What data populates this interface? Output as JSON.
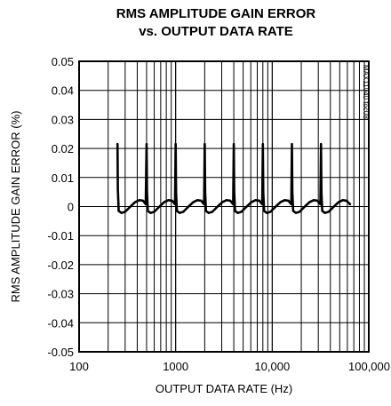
{
  "chart_data": {
    "type": "line",
    "title": [
      "RMS AMPLITUDE GAIN ERROR",
      "vs. OUTPUT DATA RATE"
    ],
    "xlabel": "OUTPUT DATA RATE (Hz)",
    "ylabel": "RMS AMPLITUDE GAIN ERROR (%)",
    "side_note": "MAX11040 toc08",
    "x_scale": "log",
    "xlim": [
      100,
      100000
    ],
    "ylim": [
      -0.05,
      0.05
    ],
    "grid": true,
    "x_ticks": [
      {
        "value": 100,
        "label": "100"
      },
      {
        "value": 1000,
        "label": "1000"
      },
      {
        "value": 10000,
        "label": "10,000"
      },
      {
        "value": 100000,
        "label": "100,000"
      }
    ],
    "y_ticks": [
      {
        "value": 0.05,
        "label": "0.05"
      },
      {
        "value": 0.04,
        "label": "0.04"
      },
      {
        "value": 0.03,
        "label": "0.03"
      },
      {
        "value": 0.02,
        "label": "0.02"
      },
      {
        "value": 0.01,
        "label": "0.01"
      },
      {
        "value": 0,
        "label": "0"
      },
      {
        "value": -0.01,
        "label": "-0.01"
      },
      {
        "value": -0.02,
        "label": "-0.02"
      },
      {
        "value": -0.03,
        "label": "-0.03"
      },
      {
        "value": -0.04,
        "label": "-0.04"
      },
      {
        "value": -0.05,
        "label": "-0.05"
      }
    ],
    "series": [
      {
        "color": "#000000",
        "points": [
          [
            250,
            0.0215
          ],
          [
            252,
            0.006
          ],
          [
            257,
            -0.0015
          ],
          [
            275,
            -0.0022
          ],
          [
            300,
            -0.0018
          ],
          [
            340,
            0.0
          ],
          [
            380,
            0.0015
          ],
          [
            420,
            0.0022
          ],
          [
            460,
            0.002
          ],
          [
            490,
            0.0008
          ],
          [
            500,
            0.0215
          ],
          [
            505,
            0.005
          ],
          [
            515,
            -0.0015
          ],
          [
            550,
            -0.0022
          ],
          [
            600,
            -0.0018
          ],
          [
            680,
            0.0
          ],
          [
            760,
            0.0015
          ],
          [
            840,
            0.0022
          ],
          [
            920,
            0.002
          ],
          [
            985,
            0.0008
          ],
          [
            1000,
            0.0215
          ],
          [
            1010,
            0.005
          ],
          [
            1030,
            -0.0015
          ],
          [
            1100,
            -0.0022
          ],
          [
            1200,
            -0.0018
          ],
          [
            1360,
            0.0
          ],
          [
            1520,
            0.0015
          ],
          [
            1680,
            0.0022
          ],
          [
            1840,
            0.002
          ],
          [
            1970,
            0.0008
          ],
          [
            2000,
            0.0215
          ],
          [
            2020,
            0.005
          ],
          [
            2060,
            -0.0015
          ],
          [
            2200,
            -0.0022
          ],
          [
            2400,
            -0.0018
          ],
          [
            2720,
            0.0
          ],
          [
            3040,
            0.0015
          ],
          [
            3360,
            0.0022
          ],
          [
            3680,
            0.002
          ],
          [
            3940,
            0.0008
          ],
          [
            4000,
            0.0215
          ],
          [
            4040,
            0.005
          ],
          [
            4120,
            -0.0015
          ],
          [
            4400,
            -0.0022
          ],
          [
            4800,
            -0.0018
          ],
          [
            5440,
            0.0
          ],
          [
            6080,
            0.0015
          ],
          [
            6720,
            0.0022
          ],
          [
            7360,
            0.002
          ],
          [
            7880,
            0.0008
          ],
          [
            8000,
            0.0215
          ],
          [
            8080,
            0.005
          ],
          [
            8240,
            -0.0015
          ],
          [
            8800,
            -0.0022
          ],
          [
            9600,
            -0.0018
          ],
          [
            10880,
            0.0
          ],
          [
            12160,
            0.0015
          ],
          [
            13440,
            0.0022
          ],
          [
            14720,
            0.002
          ],
          [
            15760,
            0.0008
          ],
          [
            16000,
            0.0215
          ],
          [
            16160,
            0.005
          ],
          [
            16480,
            -0.0015
          ],
          [
            17600,
            -0.0022
          ],
          [
            19200,
            -0.0018
          ],
          [
            21760,
            0.0
          ],
          [
            24320,
            0.0015
          ],
          [
            26880,
            0.0022
          ],
          [
            29440,
            0.002
          ],
          [
            31520,
            0.0008
          ],
          [
            32000,
            0.0215
          ],
          [
            32320,
            0.005
          ],
          [
            32960,
            -0.0015
          ],
          [
            35200,
            -0.0022
          ],
          [
            38400,
            -0.0018
          ],
          [
            43520,
            0.0
          ],
          [
            48640,
            0.0015
          ],
          [
            53760,
            0.0022
          ],
          [
            58880,
            0.002
          ],
          [
            64000,
            0.0008
          ]
        ]
      }
    ]
  }
}
